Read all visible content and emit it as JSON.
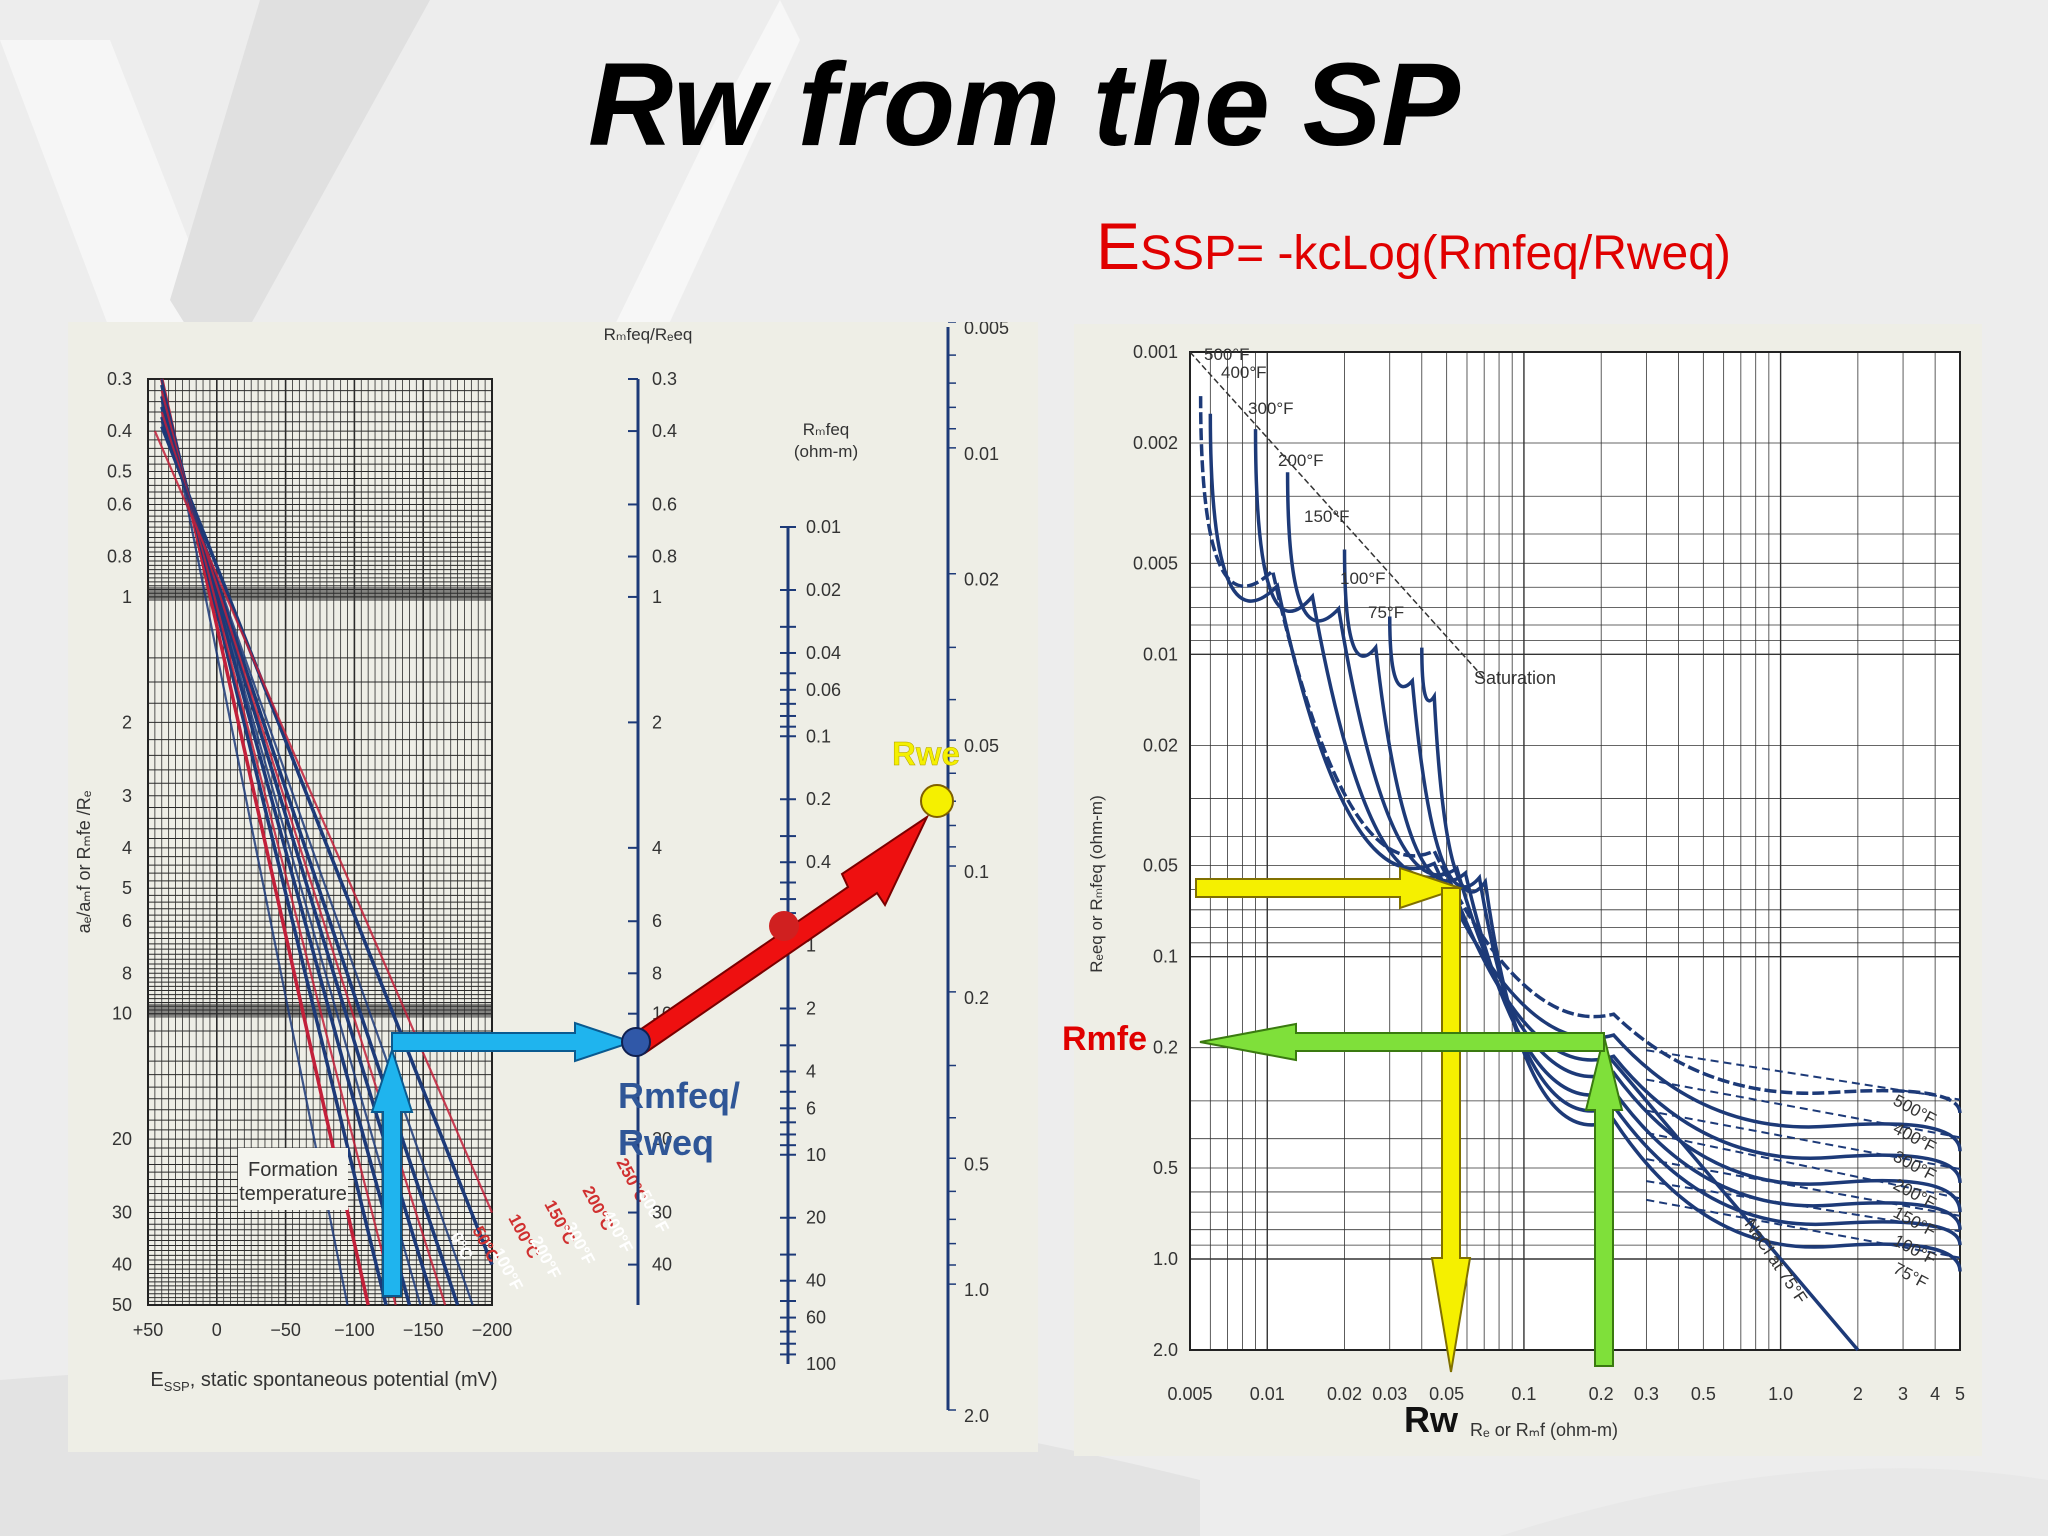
{
  "title": "Rw from the SP",
  "equation": {
    "lead": "E",
    "rest": "SSP= -kcLog(Rmfeq/Rweq)"
  },
  "colors": {
    "grid": "#2b2b2b",
    "curve_blue": "#1d3a78",
    "curve_red": "#c2203a",
    "cyan": "#1fb4ee",
    "yellow": "#f5f000",
    "green": "#7fe03a",
    "red": "#ee1010",
    "annotation_red": "#e00000"
  },
  "chart_data": [
    {
      "type": "line",
      "xlabel": "E",
      "xlabel_sub": "SSP",
      "xlabel_rest": ", static spontaneous potential (mV)",
      "ylabel": "aₑ/aₘf or Rₘfe /Rₑ",
      "xlim": [
        50,
        -200
      ],
      "ylim": [
        0.3,
        50
      ],
      "y_scale": "log",
      "x_ticks": [
        "+50",
        "0",
        "−50",
        "−100",
        "−150",
        "−200"
      ],
      "x_tick_values": [
        50,
        0,
        -50,
        -100,
        -150,
        -200
      ],
      "y_ticks": [
        "0.3",
        "0.4",
        "0.5",
        "0.6",
        "0.8",
        "1",
        "2",
        "3",
        "4",
        "5",
        "6",
        "8",
        "10",
        "20",
        "30",
        "40",
        "50"
      ],
      "y_tick_values": [
        0.3,
        0.4,
        0.5,
        0.6,
        0.8,
        1,
        2,
        3,
        4,
        5,
        6,
        8,
        10,
        20,
        30,
        40,
        50
      ],
      "right_axis_title": "Rₘfeq/Rₑeq",
      "right_ticks": [
        "0.3",
        "0.4",
        "0.6",
        "0.8",
        "1",
        "2",
        "4",
        "6",
        "8",
        "10",
        "20",
        "30",
        "40"
      ],
      "right_tick_values": [
        0.3,
        0.4,
        0.6,
        0.8,
        1,
        2,
        4,
        6,
        8,
        10,
        20,
        30,
        40
      ],
      "series": [
        {
          "name": "0°C",
          "points": [
            [
              40,
              0.3
            ],
            [
              -110,
              50
            ]
          ],
          "color": "red"
        },
        {
          "name": "50°C",
          "points": [
            [
              40,
              0.31
            ],
            [
              -123,
              50
            ]
          ],
          "color": "blue"
        },
        {
          "name": "100°C",
          "points": [
            [
              40,
              0.33
            ],
            [
              -140,
              50
            ]
          ],
          "color": "blue"
        },
        {
          "name": "150°C",
          "points": [
            [
              40,
              0.35
            ],
            [
              -158,
              50
            ]
          ],
          "color": "blue"
        },
        {
          "name": "200°C",
          "points": [
            [
              40,
              0.37
            ],
            [
              -175,
              50
            ]
          ],
          "color": "blue"
        },
        {
          "name": "250°C",
          "points": [
            [
              40,
              0.39
            ],
            [
              -200,
              40
            ]
          ],
          "color": "blue"
        }
      ],
      "curve_labels": [
        "0°C",
        "50°C",
        "100°F",
        "100°C",
        "200°F",
        "150°C",
        "300°F",
        "200°C",
        "400°F",
        "250°C",
        "500°F"
      ],
      "annotation": [
        "Formation",
        "temperature"
      ],
      "nomogram_rmfeq": {
        "title": [
          "Rₘfeq",
          "(ohm-m)"
        ],
        "ticks": [
          "0.01",
          "0.02",
          "0.04",
          "0.06",
          "0.1",
          "0.2",
          "0.4",
          "1",
          "2",
          "4",
          "6",
          "10",
          "20",
          "40",
          "60",
          "100"
        ],
        "tick_values": [
          0.01,
          0.02,
          0.04,
          0.06,
          0.1,
          0.2,
          0.4,
          1,
          2,
          4,
          6,
          10,
          20,
          40,
          60,
          100
        ]
      },
      "nomogram_rweq": {
        "ticks": [
          "0.005",
          "0.01",
          "0.02",
          "0.05",
          "0.1",
          "0.2",
          "0.5",
          "1.0",
          "2.0"
        ],
        "tick_values": [
          0.005,
          0.01,
          0.02,
          0.05,
          0.1,
          0.2,
          0.5,
          1.0,
          2.0
        ]
      }
    },
    {
      "type": "line",
      "x_scale": "log",
      "y_scale": "log",
      "xlabel": "Rₑ or Rₘf (ohm-m)",
      "ylabel": "Rₑeq or Rₘfeq (ohm-m)",
      "xlim": [
        0.005,
        5
      ],
      "ylim": [
        0.001,
        2.0
      ],
      "x_ticks": [
        "0.005",
        "0.01",
        "0.02",
        "0.03",
        "0.05",
        "0.1",
        "0.2",
        "0.3",
        "0.5",
        "1.0",
        "2",
        "3",
        "4",
        "5"
      ],
      "x_tick_values": [
        0.005,
        0.01,
        0.02,
        0.03,
        0.05,
        0.1,
        0.2,
        0.3,
        0.5,
        1.0,
        2,
        3,
        4,
        5
      ],
      "y_ticks": [
        "0.001",
        "0.002",
        "0.005",
        "0.01",
        "0.02",
        "0.05",
        "0.1",
        "0.2",
        "0.5",
        "1.0",
        "2.0"
      ],
      "y_tick_values": [
        0.001,
        0.002,
        0.005,
        0.01,
        0.02,
        0.05,
        0.1,
        0.2,
        0.5,
        1.0,
        2.0
      ],
      "series": [
        {
          "name": "500°F",
          "points": [
            [
              0.0055,
              0.0014
            ],
            [
              0.02,
              0.02
            ],
            [
              0.1,
              0.1
            ],
            [
              0.5,
              0.24
            ],
            [
              5,
              0.33
            ]
          ]
        },
        {
          "name": "400°F",
          "points": [
            [
              0.006,
              0.0016
            ],
            [
              0.02,
              0.022
            ],
            [
              0.1,
              0.11
            ],
            [
              0.5,
              0.3
            ],
            [
              5,
              0.44
            ]
          ]
        },
        {
          "name": "300°F",
          "points": [
            [
              0.009,
              0.0018
            ],
            [
              0.025,
              0.023
            ],
            [
              0.1,
              0.12
            ],
            [
              0.5,
              0.38
            ],
            [
              5,
              0.56
            ]
          ]
        },
        {
          "name": "200°F",
          "points": [
            [
              0.012,
              0.0025
            ],
            [
              0.03,
              0.02
            ],
            [
              0.1,
              0.13
            ],
            [
              0.5,
              0.45
            ],
            [
              5,
              0.7
            ]
          ]
        },
        {
          "name": "150°F",
          "points": [
            [
              0.02,
              0.0045
            ],
            [
              0.035,
              0.02
            ],
            [
              0.1,
              0.14
            ],
            [
              0.5,
              0.55
            ],
            [
              5,
              0.8
            ]
          ]
        },
        {
          "name": "100°F",
          "points": [
            [
              0.03,
              0.0075
            ],
            [
              0.045,
              0.02
            ],
            [
              0.1,
              0.15
            ],
            [
              0.5,
              0.65
            ],
            [
              5,
              0.9
            ]
          ]
        },
        {
          "name": "75°F",
          "points": [
            [
              0.04,
              0.0095
            ],
            [
              0.05,
              0.02
            ],
            [
              0.1,
              0.16
            ],
            [
              0.5,
              0.75
            ],
            [
              5,
              1.1
            ]
          ]
        }
      ],
      "annotations": [
        "Saturation",
        "NaCl at 75°F"
      ],
      "curve_labels": [
        "500°F",
        "400°F",
        "300°F",
        "200°F",
        "150°F",
        "100°F",
        "75°F"
      ]
    }
  ],
  "overlay_labels": {
    "rwe": "Rwe",
    "rmfeq_rweq": [
      "Rmfeq/",
      "Rweq"
    ],
    "rmfe": "Rmfe",
    "rw": "Rw"
  }
}
